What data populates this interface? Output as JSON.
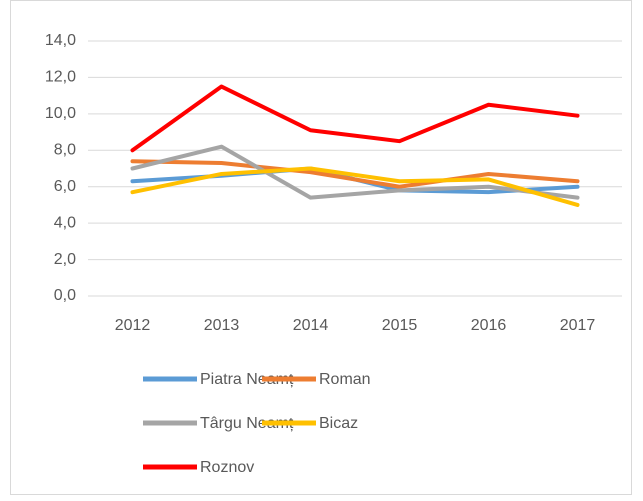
{
  "chart_data": {
    "type": "line",
    "categories": [
      "2012",
      "2013",
      "2014",
      "2015",
      "2016",
      "2017"
    ],
    "series": [
      {
        "name": "Piatra Neamț",
        "color": "#5b9bd5",
        "values": [
          6.3,
          6.6,
          7.0,
          5.8,
          5.7,
          6.0
        ]
      },
      {
        "name": "Roman",
        "color": "#ed7d31",
        "values": [
          7.4,
          7.3,
          6.8,
          6.0,
          6.7,
          6.3
        ]
      },
      {
        "name": "Târgu Neamț",
        "color": "#a5a5a5",
        "values": [
          7.0,
          8.2,
          5.4,
          5.8,
          6.0,
          5.4
        ]
      },
      {
        "name": "Bicaz",
        "color": "#ffc000",
        "values": [
          5.7,
          6.7,
          7.0,
          6.3,
          6.4,
          5.0
        ]
      },
      {
        "name": "Roznov",
        "color": "#ff0000",
        "values": [
          8.0,
          11.5,
          9.1,
          8.5,
          10.5,
          9.9
        ]
      }
    ],
    "ylim": [
      0,
      14
    ],
    "yticks": [
      {
        "value": 0,
        "label": "0,0"
      },
      {
        "value": 2,
        "label": "2,0"
      },
      {
        "value": 4,
        "label": "4,0"
      },
      {
        "value": 6,
        "label": "6,0"
      },
      {
        "value": 8,
        "label": "8,0"
      },
      {
        "value": 10,
        "label": "10,0"
      },
      {
        "value": 12,
        "label": "12,0"
      },
      {
        "value": 14,
        "label": "14,0"
      }
    ],
    "grid": true,
    "legend": "bottom"
  }
}
